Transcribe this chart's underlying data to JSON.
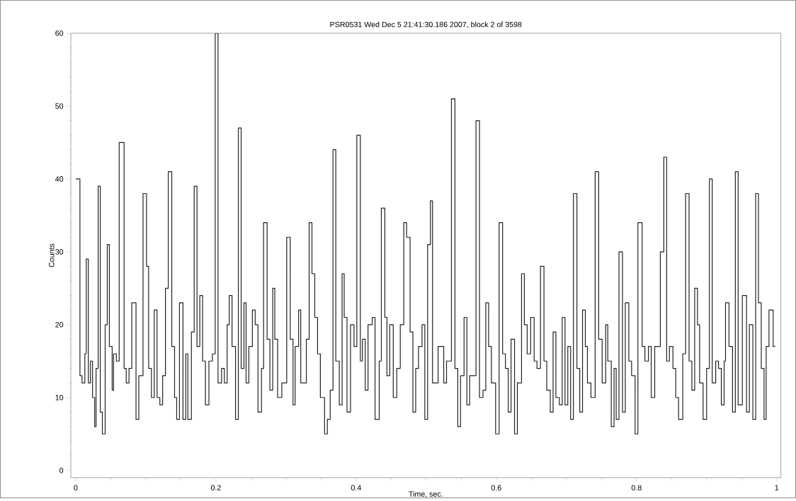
{
  "chart_data": {
    "type": "step",
    "title": "PSR0531  Wed Dec  5 21:41:30.186 2007, block 2 of 3598",
    "xlabel": "Time, sec.",
    "ylabel": "Counts",
    "xlim": [
      -0.007,
      1.006
    ],
    "ylim": [
      -1,
      60
    ],
    "xticks": [
      0,
      0.2,
      0.4,
      0.6,
      0.8,
      1
    ],
    "yticks": [
      0,
      10,
      20,
      30,
      40,
      50,
      60
    ],
    "series": [
      {
        "color": "#222222",
        "x": [
          0.0,
          0.006,
          0.009,
          0.013,
          0.015,
          0.018,
          0.021,
          0.024,
          0.027,
          0.029,
          0.032,
          0.035,
          0.038,
          0.042,
          0.045,
          0.048,
          0.052,
          0.054,
          0.058,
          0.062,
          0.069,
          0.072,
          0.076,
          0.08,
          0.086,
          0.09,
          0.096,
          0.101,
          0.104,
          0.108,
          0.112,
          0.116,
          0.12,
          0.124,
          0.128,
          0.132,
          0.137,
          0.141,
          0.144,
          0.148,
          0.153,
          0.157,
          0.16,
          0.165,
          0.169,
          0.173,
          0.177,
          0.181,
          0.185,
          0.19,
          0.195,
          0.199,
          0.203,
          0.208,
          0.212,
          0.216,
          0.219,
          0.223,
          0.228,
          0.232,
          0.236,
          0.24,
          0.243,
          0.247,
          0.252,
          0.256,
          0.26,
          0.265,
          0.268,
          0.273,
          0.277,
          0.281,
          0.284,
          0.288,
          0.294,
          0.301,
          0.306,
          0.31,
          0.313,
          0.318,
          0.321,
          0.326,
          0.329,
          0.333,
          0.337,
          0.341,
          0.345,
          0.349,
          0.355,
          0.359,
          0.363,
          0.367,
          0.371,
          0.376,
          0.38,
          0.383,
          0.387,
          0.392,
          0.397,
          0.401,
          0.406,
          0.409,
          0.413,
          0.417,
          0.423,
          0.427,
          0.433,
          0.436,
          0.441,
          0.444,
          0.448,
          0.453,
          0.458,
          0.463,
          0.468,
          0.472,
          0.477,
          0.481,
          0.485,
          0.489,
          0.494,
          0.498,
          0.502,
          0.506,
          0.509,
          0.517,
          0.525,
          0.529,
          0.536,
          0.541,
          0.545,
          0.549,
          0.554,
          0.558,
          0.562,
          0.571,
          0.576,
          0.581,
          0.585,
          0.589,
          0.593,
          0.599,
          0.604,
          0.609,
          0.613,
          0.617,
          0.621,
          0.626,
          0.63,
          0.636,
          0.64,
          0.644,
          0.649,
          0.654,
          0.658,
          0.663,
          0.668,
          0.672,
          0.677,
          0.681,
          0.685,
          0.69,
          0.694,
          0.698,
          0.702,
          0.706,
          0.71,
          0.715,
          0.719,
          0.723,
          0.727,
          0.73,
          0.735,
          0.741,
          0.746,
          0.751,
          0.756,
          0.759,
          0.764,
          0.768,
          0.771,
          0.775,
          0.78,
          0.784,
          0.789,
          0.793,
          0.798,
          0.802,
          0.808,
          0.812,
          0.817,
          0.821,
          0.826,
          0.834,
          0.839,
          0.843,
          0.847,
          0.852,
          0.856,
          0.86,
          0.866,
          0.87,
          0.875,
          0.879,
          0.883,
          0.887,
          0.89,
          0.895,
          0.9,
          0.904,
          0.908,
          0.913,
          0.917,
          0.921,
          0.925,
          0.927,
          0.932,
          0.937,
          0.941,
          0.945,
          0.951,
          0.957,
          0.961,
          0.966,
          0.97,
          0.974,
          0.978,
          0.982,
          0.985,
          0.989,
          0.995,
          0.998
        ],
        "values": [
          40,
          13,
          12,
          16,
          29,
          12,
          15,
          10,
          6,
          14,
          39,
          8,
          5,
          20,
          31,
          17,
          11,
          16,
          15,
          45,
          14,
          12,
          14,
          23,
          7,
          13,
          38,
          28,
          14,
          10,
          22,
          10,
          9,
          13,
          25,
          41,
          17,
          10,
          7,
          23,
          7,
          16,
          7,
          19,
          39,
          17,
          24,
          15,
          9,
          15,
          16,
          60,
          12,
          14,
          12,
          20,
          24,
          17,
          7,
          47,
          14,
          23,
          12,
          17,
          22,
          20,
          8,
          14,
          34,
          18,
          11,
          25,
          18,
          10,
          12,
          32,
          18,
          9,
          17,
          22,
          12,
          12,
          18,
          34,
          27,
          21,
          16,
          10,
          5,
          7,
          11,
          44,
          15,
          9,
          27,
          21,
          8,
          20,
          17,
          46,
          15,
          18,
          11,
          20,
          21,
          7,
          15,
          36,
          21,
          13,
          20,
          10,
          14,
          20,
          34,
          32,
          19,
          8,
          14,
          17,
          20,
          7,
          31,
          37,
          12,
          17,
          12,
          15,
          51,
          14,
          6,
          13,
          21,
          9,
          13,
          48,
          10,
          11,
          23,
          17,
          12,
          5,
          34,
          16,
          14,
          8,
          18,
          5,
          12,
          27,
          20,
          16,
          21,
          15,
          14,
          28,
          15,
          11,
          8,
          19,
          10,
          9,
          21,
          9,
          17,
          7,
          38,
          14,
          8,
          22,
          17,
          12,
          10,
          41,
          18,
          12,
          20,
          15,
          6,
          14,
          7,
          30,
          8,
          23,
          15,
          13,
          5,
          34,
          17,
          15,
          17,
          10,
          17,
          30,
          43,
          15,
          17,
          14,
          10,
          7,
          16,
          38,
          15,
          11,
          25,
          20,
          12,
          7,
          14,
          40,
          12,
          15,
          14,
          9,
          15,
          23,
          17,
          8,
          41,
          9,
          24,
          8,
          20,
          7,
          38,
          23,
          14,
          7,
          17,
          22,
          17,
          17
        ]
      }
    ]
  }
}
